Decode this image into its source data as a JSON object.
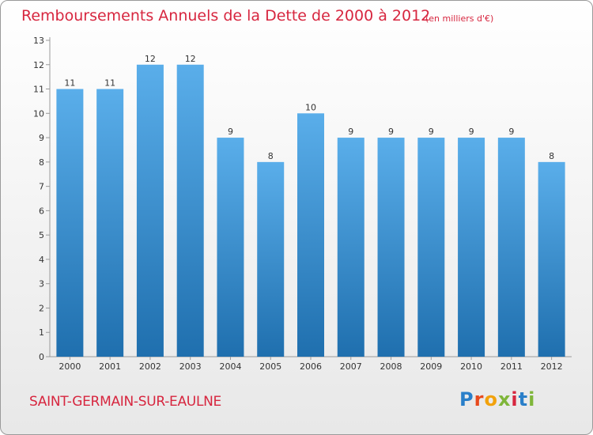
{
  "header": {
    "title": "Remboursements Annuels de la Dette de 2000 à 2012",
    "unit": "(en milliers d'€)"
  },
  "footer": {
    "commune": "SAINT-GERMAIN-SUR-EAULNE",
    "logo": "Proxiti"
  },
  "colors": {
    "title": "#d7263f",
    "bar": "#4ba3e3",
    "bar_dark": "#1f6fae"
  },
  "chart_data": {
    "type": "bar",
    "title": "Remboursements Annuels de la Dette de 2000 à 2012",
    "xlabel": "",
    "ylabel": "",
    "categories": [
      "2000",
      "2001",
      "2002",
      "2003",
      "2004",
      "2005",
      "2006",
      "2007",
      "2008",
      "2009",
      "2010",
      "2011",
      "2012"
    ],
    "values": [
      11,
      11,
      12,
      12,
      9,
      8,
      10,
      9,
      9,
      9,
      9,
      9,
      8
    ],
    "ylim": [
      0,
      13
    ],
    "yticks": [
      0,
      1,
      2,
      3,
      4,
      5,
      6,
      7,
      8,
      9,
      10,
      11,
      12,
      13
    ],
    "grid": false,
    "legend": "none",
    "data_labels": true
  }
}
